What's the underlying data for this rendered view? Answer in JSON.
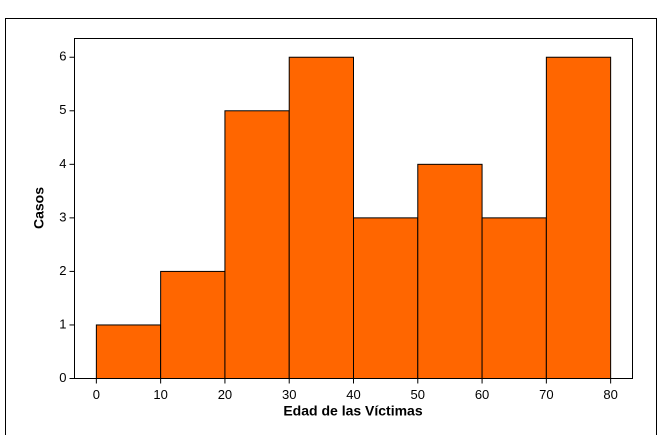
{
  "chart_data": {
    "type": "histogram",
    "xlabel": "Edad de las Víctimas",
    "ylabel": "Casos",
    "bins": [
      0,
      10,
      20,
      30,
      40,
      50,
      60,
      70,
      80
    ],
    "values": [
      1,
      2,
      5,
      6,
      3,
      4,
      3,
      6
    ],
    "color": "#ff6600",
    "xlim": [
      -3.4,
      83.4
    ],
    "ylim": [
      0,
      6.35
    ],
    "xticks": [
      0,
      10,
      20,
      30,
      40,
      50,
      60,
      70,
      80
    ],
    "yticks": [
      0,
      1,
      2,
      3,
      4,
      5,
      6
    ]
  }
}
